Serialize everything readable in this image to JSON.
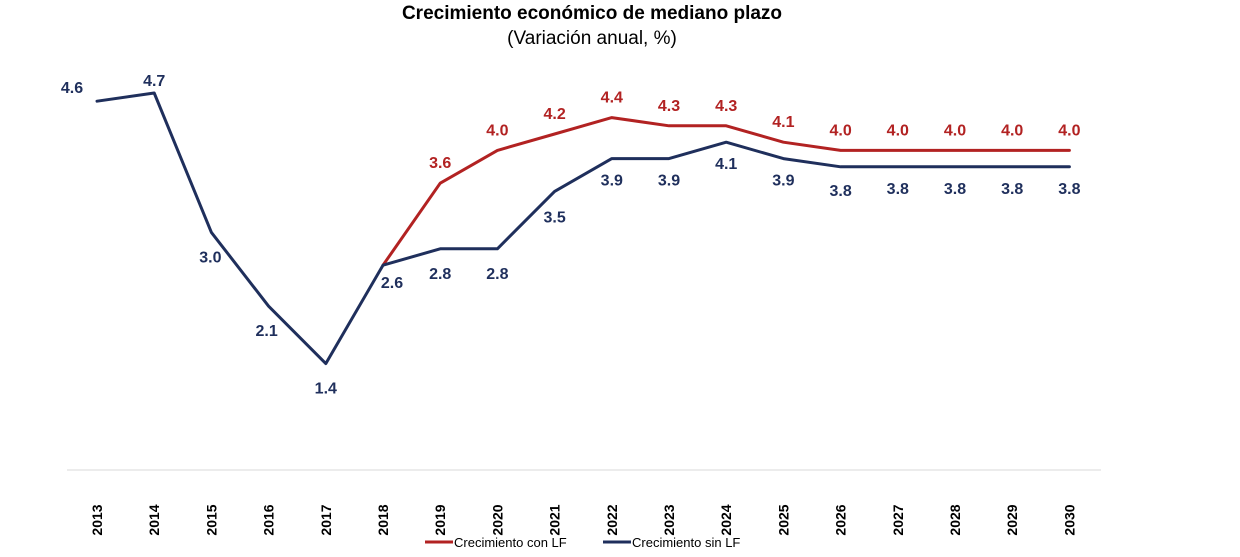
{
  "chart_data": {
    "type": "line",
    "title": "Crecimiento económico de mediano plazo",
    "subtitle": "(Variación anual, %)",
    "xlabel": "",
    "ylabel": "",
    "x": [
      "2013",
      "2014",
      "2015",
      "2016",
      "2017",
      "2018",
      "2019",
      "2020",
      "2021",
      "2022",
      "2023",
      "2024",
      "2025",
      "2026",
      "2027",
      "2028",
      "2029",
      "2030"
    ],
    "ylim": [
      0,
      5
    ],
    "grid": false,
    "legend_position": "bottom",
    "series": [
      {
        "name": "Crecimiento con LF",
        "color": "#B22222",
        "values": [
          null,
          null,
          null,
          null,
          null,
          2.6,
          3.6,
          4.0,
          4.2,
          4.4,
          4.3,
          4.3,
          4.1,
          4.0,
          4.0,
          4.0,
          4.0,
          4.0
        ],
        "labels": [
          "",
          "",
          "",
          "",
          "",
          "",
          "3.6",
          "4.0",
          "4.2",
          "4.4",
          "4.3",
          "4.3",
          "4.1",
          "4.0",
          "4.0",
          "4.0",
          "4.0",
          "4.0"
        ]
      },
      {
        "name": "Crecimiento sin LF",
        "color": "#1F2F5C",
        "values": [
          4.6,
          4.7,
          3.0,
          2.1,
          1.4,
          2.6,
          2.8,
          2.8,
          3.5,
          3.9,
          3.9,
          4.1,
          3.9,
          3.8,
          3.8,
          3.8,
          3.8,
          3.8
        ],
        "labels": [
          "4.6",
          "4.7",
          "3.0",
          "2.1",
          "1.4",
          "2.6",
          "2.8",
          "2.8",
          "3.5",
          "3.9",
          "3.9",
          "4.1",
          "3.9",
          "3.8",
          "3.8",
          "3.8",
          "3.8",
          "3.8"
        ]
      }
    ]
  }
}
